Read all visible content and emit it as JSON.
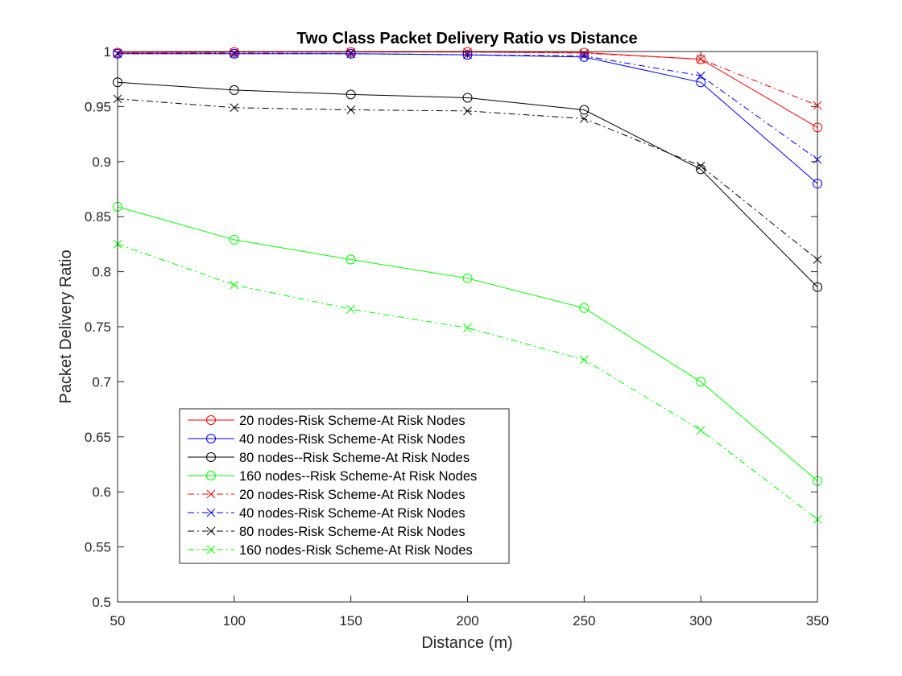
{
  "chart_data": {
    "type": "line",
    "title": "Two Class Packet Delivery Ratio vs Distance",
    "xlabel": "Distance (m)",
    "ylabel": "Packet Delivery Ratio",
    "xlim": [
      50,
      350
    ],
    "ylim": [
      0.5,
      1
    ],
    "x": [
      50,
      100,
      150,
      200,
      250,
      300,
      350
    ],
    "x_ticks": [
      50,
      100,
      150,
      200,
      250,
      300,
      350
    ],
    "y_ticks": [
      0.5,
      0.55,
      0.6,
      0.65,
      0.7,
      0.75,
      0.8,
      0.85,
      0.9,
      0.95,
      1
    ],
    "y_tick_labels": [
      "0.5",
      "0.55",
      "0.6",
      "0.65",
      "0.7",
      "0.75",
      "0.8",
      "0.85",
      "0.9",
      "0.95",
      "1"
    ],
    "grid": false,
    "legend_position": "lower-left",
    "series": [
      {
        "name": "20 nodes-Risk Scheme-At Risk Nodes",
        "color": "#ff0000",
        "line_style": "solid",
        "marker": "circle",
        "values": [
          0.999,
          0.9995,
          0.9995,
          0.9995,
          0.999,
          0.993,
          0.931
        ]
      },
      {
        "name": "40 nodes-Risk Scheme-At Risk Nodes",
        "color": "#0000ff",
        "line_style": "solid",
        "marker": "circle",
        "values": [
          0.998,
          0.998,
          0.998,
          0.997,
          0.995,
          0.972,
          0.88
        ]
      },
      {
        "name": "80 nodes--Risk Scheme-At Risk Nodes",
        "color": "#000000",
        "line_style": "solid",
        "marker": "circle",
        "values": [
          0.972,
          0.965,
          0.961,
          0.958,
          0.947,
          0.893,
          0.786
        ]
      },
      {
        "name": "160 nodes--Risk Scheme-At Risk Nodes",
        "color": "#00ff00",
        "line_style": "solid",
        "marker": "circle",
        "values": [
          0.859,
          0.829,
          0.811,
          0.794,
          0.767,
          0.7,
          0.61
        ]
      },
      {
        "name": "20 nodes-Risk Scheme-At Risk Nodes",
        "color": "#ff0000",
        "line_style": "dashdot",
        "marker": "x",
        "values": [
          0.9985,
          0.999,
          0.9995,
          0.9995,
          0.9985,
          0.993,
          0.951
        ]
      },
      {
        "name": "40 nodes-Risk Scheme-At Risk Nodes",
        "color": "#0000ff",
        "line_style": "dashdot",
        "marker": "x",
        "values": [
          0.998,
          0.998,
          0.998,
          0.997,
          0.996,
          0.978,
          0.902
        ]
      },
      {
        "name": "80 nodes-Risk Scheme-At Risk Nodes",
        "color": "#000000",
        "line_style": "dashdot",
        "marker": "x",
        "values": [
          0.957,
          0.949,
          0.947,
          0.946,
          0.939,
          0.896,
          0.811
        ]
      },
      {
        "name": "160 nodes-Risk Scheme-At Risk Nodes",
        "color": "#00ff00",
        "line_style": "dashdot",
        "marker": "x",
        "values": [
          0.825,
          0.788,
          0.766,
          0.749,
          0.72,
          0.656,
          0.575
        ]
      }
    ]
  }
}
